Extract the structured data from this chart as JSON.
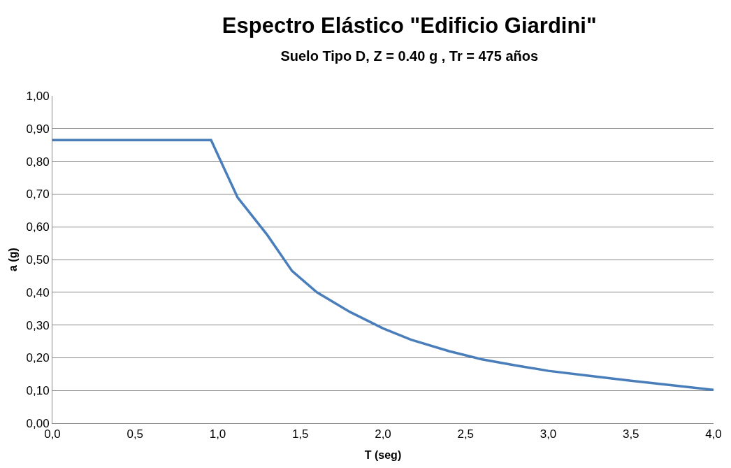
{
  "chart_data": {
    "type": "line",
    "title": "Espectro Elástico \"Edificio Giardini\"",
    "subtitle": "Suelo Tipo D, Z = 0.40 g , Tr = 475 años",
    "xlabel": "T (seg)",
    "ylabel": "a (g)",
    "x": [
      0.0,
      0.96,
      1.01,
      1.12,
      1.3,
      1.45,
      1.6,
      1.8,
      2.0,
      2.17,
      2.4,
      2.6,
      2.8,
      3.0,
      3.25,
      3.5,
      3.75,
      4.0
    ],
    "series": [
      {
        "color": "#4a7ebb",
        "values": [
          0.865,
          0.865,
          0.81,
          0.69,
          0.575,
          0.465,
          0.4,
          0.34,
          0.29,
          0.255,
          0.22,
          0.195,
          0.177,
          0.16,
          0.145,
          0.13,
          0.116,
          0.102
        ]
      }
    ],
    "xlim": [
      0.0,
      4.0
    ],
    "xticks": [
      {
        "value": 0,
        "label": "0,0"
      },
      {
        "value": 0.5,
        "label": "0,5"
      },
      {
        "value": 1,
        "label": "1,0"
      },
      {
        "value": 1.5,
        "label": "1,5"
      },
      {
        "value": 2,
        "label": "2,0"
      },
      {
        "value": 2.5,
        "label": "2,5"
      },
      {
        "value": 3,
        "label": "3,0"
      },
      {
        "value": 3.5,
        "label": "3,5"
      },
      {
        "value": 4,
        "label": "4,0"
      }
    ],
    "ylim": [
      0.0,
      1.0
    ],
    "yticks": [
      {
        "value": 0,
        "label": "0,00"
      },
      {
        "value": 0.1,
        "label": "0,10"
      },
      {
        "value": 0.2,
        "label": "0,20"
      },
      {
        "value": 0.3,
        "label": "0,30"
      },
      {
        "value": 0.4,
        "label": "0,40"
      },
      {
        "value": 0.5,
        "label": "0,50"
      },
      {
        "value": 0.6,
        "label": "0,60"
      },
      {
        "value": 0.7,
        "label": "0,70"
      },
      {
        "value": 0.8,
        "label": "0,80"
      },
      {
        "value": 0.9,
        "label": "0,90"
      },
      {
        "value": 1,
        "label": "1,00"
      }
    ],
    "grid": "y",
    "marker": "none",
    "line_style": "solid"
  }
}
